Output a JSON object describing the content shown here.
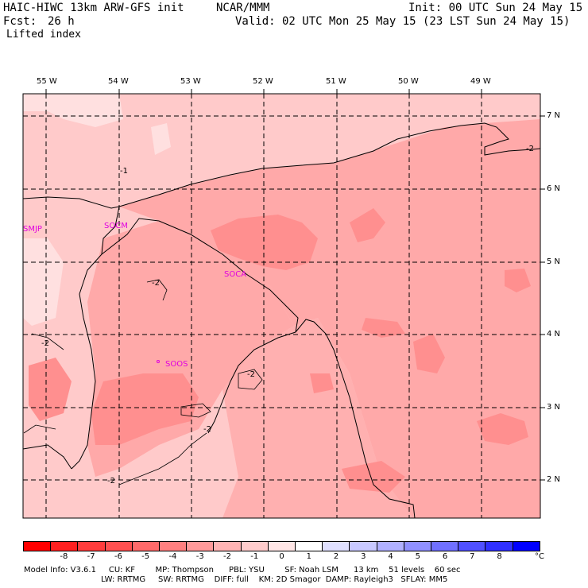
{
  "header": {
    "title": "HAIC-HIWC 13km ARW-GFS init",
    "org": "NCAR/MMM",
    "init": "Init: 00 UTC Sun 24 May 15",
    "fcst_label": "Fcst:",
    "fcst_value": "26 h",
    "valid": "Valid: 02 UTC Mon 25 May 15 (23 LST Sun 24 May 15)",
    "field": "Lifted index"
  },
  "map": {
    "lon_labels": [
      "55 W",
      "54 W",
      "53 W",
      "52 W",
      "51 W",
      "50 W",
      "49 W"
    ],
    "lat_labels": [
      "7 N",
      "6 N",
      "5 N",
      "4 N",
      "3 N",
      "2 N"
    ],
    "stations": [
      "SMJP",
      "SOCM",
      "SOCA",
      "SOOS"
    ],
    "contour_labels": [
      "-2",
      "-2",
      "-2",
      "-2",
      "-2",
      "-2",
      "-1"
    ]
  },
  "colorbar": {
    "colors": [
      "#ff0000",
      "#ff2020",
      "#ff3c3c",
      "#ff5050",
      "#ff6a6a",
      "#ff8080",
      "#ff9a9a",
      "#ffb4b4",
      "#ffcccc",
      "#ffe6e6",
      "#ffffff",
      "#e0e0ff",
      "#c8c8ff",
      "#b0b0ff",
      "#9090ff",
      "#7070ff",
      "#5050ff",
      "#3030ff",
      "#0000ff"
    ],
    "labels": [
      "-8",
      "-7",
      "-6",
      "-5",
      "-4",
      "-3",
      "-2",
      "-1",
      "0",
      "1",
      "2",
      "3",
      "4",
      "5",
      "6",
      "7",
      "8"
    ],
    "unit": "°C"
  },
  "model_info": {
    "line1": "Model Info: V3.6.1     CU: KF        MP: Thompson      PBL: YSU        SF: Noah LSM      13 km    51 levels    60 sec",
    "line2": "LW: RRTMG     SW: RRTMG    DIFF: full    KM: 2D Smagor  DAMP: Rayleigh3   SFLAY: MM5"
  }
}
